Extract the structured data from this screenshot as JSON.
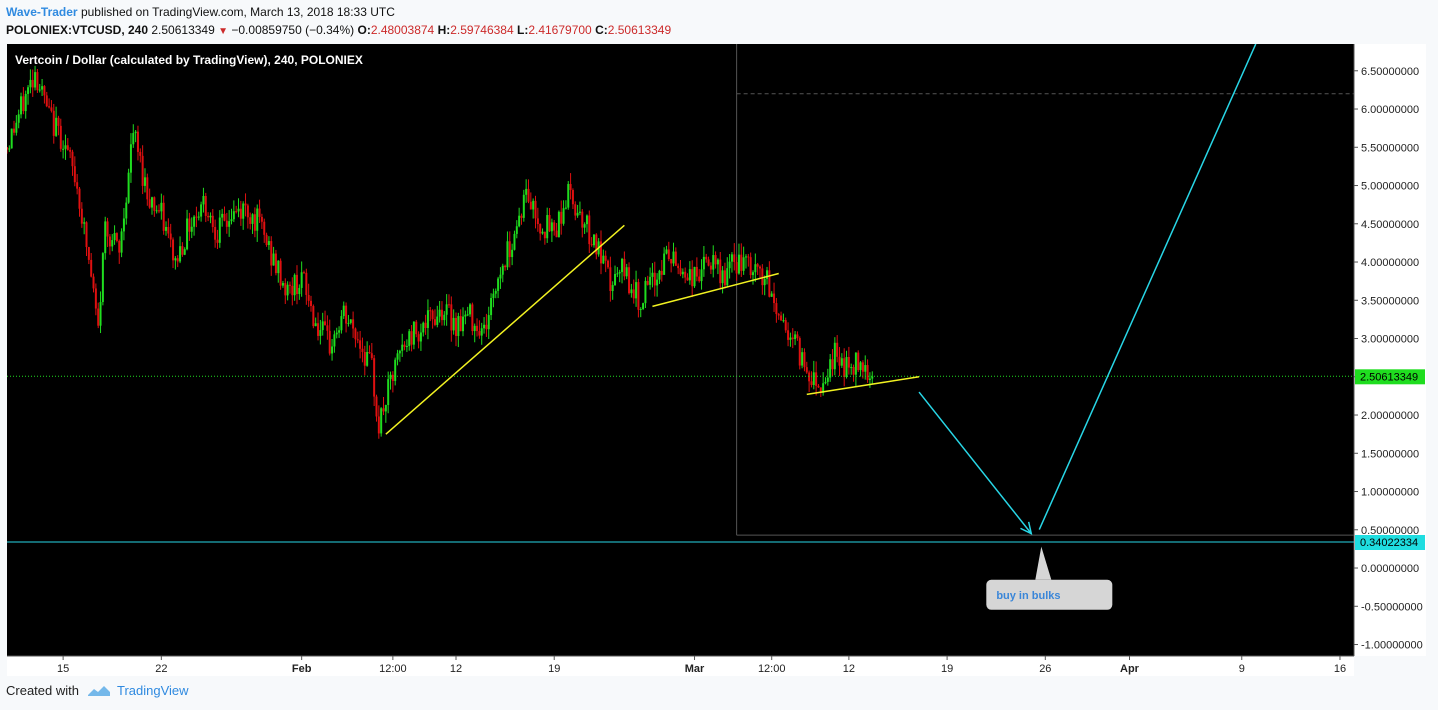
{
  "header": {
    "author": "Wave-Trader",
    "published_text": "published on TradingView.com, March 13, 2018 18:33 UTC",
    "symbol": "POLONIEX:VTCUSD, 240",
    "last": "2.50613349",
    "change": "−0.00859750 (−0.34%)",
    "o_label": "O:",
    "o_val": "2.48003874",
    "h_label": "H:",
    "h_val": "2.59746384",
    "l_label": "L:",
    "l_val": "2.41679700",
    "c_label": "C:",
    "c_val": "2.50613349"
  },
  "footer": {
    "created_with": "Created with",
    "brand": "TradingView"
  },
  "colors": {
    "background": "#000000",
    "up": "#1fdd1f",
    "down": "#e01010",
    "trendline": "#f2f221",
    "projection": "#28d6e6",
    "last_price_badge": "#1fdd1f",
    "target_badge": "#1fdde0"
  },
  "chart_data": {
    "type": "candlestick",
    "title": "Vertcoin / Dollar (calculated by TradingView), 240, POLONIEX",
    "ylim": [
      -1.15,
      6.85
    ],
    "y_ticks": [
      6.5,
      6.0,
      5.5,
      5.0,
      4.5,
      4.0,
      3.5,
      3.0,
      2.5,
      2.0,
      1.5,
      1.0,
      0.5,
      0.0,
      -0.5,
      -1.0
    ],
    "y_tick_labels": [
      "6.50000000",
      "6.00000000",
      "5.50000000",
      "5.00000000",
      "4.50000000",
      "4.00000000",
      "3.50000000",
      "3.00000000",
      "2.50000000",
      "2.00000000",
      "1.50000000",
      "1.00000000",
      "0.50000000",
      "0.00000000",
      "-0.50000000",
      "-1.00000000"
    ],
    "xlim": [
      "2018-01-11",
      "2018-04-17"
    ],
    "x_ticks": [
      {
        "date": "2018-01-15",
        "label": "15"
      },
      {
        "date": "2018-01-22",
        "label": "22"
      },
      {
        "date": "2018-02-01",
        "label": "Feb"
      },
      {
        "date": "2018-02-07T12:00",
        "label": "12:00"
      },
      {
        "date": "2018-02-12",
        "label": "12"
      },
      {
        "date": "2018-02-19",
        "label": "19"
      },
      {
        "date": "2018-03-01",
        "label": "Mar"
      },
      {
        "date": "2018-03-06T12:00",
        "label": "12:00"
      },
      {
        "date": "2018-03-12",
        "label": "12"
      },
      {
        "date": "2018-03-19",
        "label": "19"
      },
      {
        "date": "2018-03-26",
        "label": "26"
      },
      {
        "date": "2018-04-01",
        "label": "Apr"
      },
      {
        "date": "2018-04-09",
        "label": "9"
      },
      {
        "date": "2018-04-16",
        "label": "16"
      }
    ],
    "price_path": [
      [
        "2018-01-11",
        5.5
      ],
      [
        "2018-01-13",
        6.5
      ],
      [
        "2018-01-14",
        5.9
      ],
      [
        "2018-01-15",
        5.6
      ],
      [
        "2018-01-16",
        5.0
      ],
      [
        "2018-01-17",
        3.8
      ],
      [
        "2018-01-17T12:00",
        3.1
      ],
      [
        "2018-01-18",
        4.5
      ],
      [
        "2018-01-19",
        4.1
      ],
      [
        "2018-01-20",
        5.7
      ],
      [
        "2018-01-21",
        4.9
      ],
      [
        "2018-01-22",
        4.6
      ],
      [
        "2018-01-23",
        4.0
      ],
      [
        "2018-01-24",
        4.5
      ],
      [
        "2018-01-25",
        4.8
      ],
      [
        "2018-01-26",
        4.4
      ],
      [
        "2018-01-27",
        4.6
      ],
      [
        "2018-01-28",
        4.7
      ],
      [
        "2018-01-29",
        4.5
      ],
      [
        "2018-01-30",
        4.0
      ],
      [
        "2018-01-31",
        3.6
      ],
      [
        "2018-02-01",
        3.8
      ],
      [
        "2018-02-02",
        3.2
      ],
      [
        "2018-02-03",
        2.9
      ],
      [
        "2018-02-04",
        3.3
      ],
      [
        "2018-02-05",
        3.0
      ],
      [
        "2018-02-06",
        2.6
      ],
      [
        "2018-02-06T12:00",
        1.85
      ],
      [
        "2018-02-07",
        2.2
      ],
      [
        "2018-02-08",
        2.8
      ],
      [
        "2018-02-09",
        3.1
      ],
      [
        "2018-02-10",
        3.2
      ],
      [
        "2018-02-11",
        3.4
      ],
      [
        "2018-02-12",
        3.2
      ],
      [
        "2018-02-13",
        3.3
      ],
      [
        "2018-02-14",
        3.1
      ],
      [
        "2018-02-15",
        3.8
      ],
      [
        "2018-02-16",
        4.3
      ],
      [
        "2018-02-17",
        4.9
      ],
      [
        "2018-02-18",
        4.5
      ],
      [
        "2018-02-19",
        4.4
      ],
      [
        "2018-02-20",
        4.9
      ],
      [
        "2018-02-21",
        4.6
      ],
      [
        "2018-02-22",
        4.2
      ],
      [
        "2018-02-23",
        3.7
      ],
      [
        "2018-02-24",
        3.9
      ],
      [
        "2018-02-25",
        3.5
      ],
      [
        "2018-02-26",
        3.7
      ],
      [
        "2018-02-27",
        4.1
      ],
      [
        "2018-02-28",
        3.9
      ],
      [
        "2018-03-01",
        3.8
      ],
      [
        "2018-03-02",
        4.0
      ],
      [
        "2018-03-03",
        3.8
      ],
      [
        "2018-03-04",
        4.0
      ],
      [
        "2018-03-05",
        3.9
      ],
      [
        "2018-03-06",
        3.8
      ],
      [
        "2018-03-07",
        3.3
      ],
      [
        "2018-03-08",
        3.0
      ],
      [
        "2018-03-09",
        2.6
      ],
      [
        "2018-03-10",
        2.4
      ],
      [
        "2018-03-11",
        2.8
      ],
      [
        "2018-03-12",
        2.6
      ],
      [
        "2018-03-13",
        2.7
      ],
      [
        "2018-03-13T18:00",
        2.5
      ]
    ],
    "last_price": {
      "value": 2.50613349,
      "label": "2.50613349"
    },
    "target_level": {
      "value": 0.34022334,
      "label": "0.34022334"
    },
    "annotations": {
      "trendlines": [
        {
          "from": [
            "2018-02-07",
            1.75
          ],
          "to": [
            "2018-02-24",
            4.48
          ]
        },
        {
          "from": [
            "2018-02-26",
            3.42
          ],
          "to": [
            "2018-03-07",
            3.85
          ]
        },
        {
          "from": [
            "2018-03-09",
            2.27
          ],
          "to": [
            "2018-03-17",
            2.5
          ]
        }
      ],
      "projection": [
        [
          "2018-03-17",
          2.3
        ],
        [
          "2018-03-25",
          0.45
        ],
        [
          "2018-04-10",
          6.85
        ]
      ],
      "range_box": {
        "x_start": "2018-03-04",
        "y_top": 6.2,
        "y_bottom": 0.43
      },
      "callout": {
        "text": "buy in bulks",
        "date": "2018-03-26",
        "value": -0.35,
        "pointer_value": 0.28
      }
    }
  }
}
